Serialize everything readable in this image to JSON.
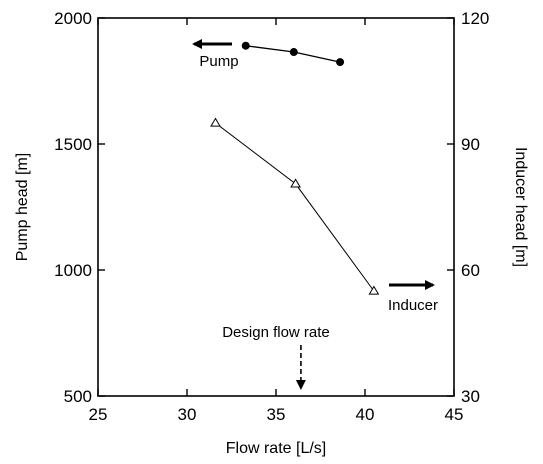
{
  "chart_data": {
    "type": "line",
    "title": "",
    "xlabel": "Flow rate [L/s]",
    "ylabel_left": "Pump head [m]",
    "ylabel_right": "Inducer head [m]",
    "xlim": [
      25,
      45
    ],
    "ylim_left": [
      500,
      2000
    ],
    "ylim_right": [
      30,
      120
    ],
    "xticks": [
      25,
      30,
      35,
      40,
      45
    ],
    "yticks_left": [
      500,
      1000,
      1500,
      2000
    ],
    "yticks_right": [
      30,
      60,
      90,
      120
    ],
    "grid": false,
    "series": [
      {
        "name": "Pump",
        "axis": "left",
        "marker": "filled-circle",
        "x": [
          33.3,
          36.0,
          38.6
        ],
        "y": [
          1890,
          1865,
          1825
        ]
      },
      {
        "name": "Inducer",
        "axis": "right",
        "marker": "open-triangle",
        "x": [
          31.6,
          36.1,
          40.5
        ],
        "y": [
          95,
          80.5,
          55
        ]
      }
    ],
    "annotations": [
      {
        "text": "Pump",
        "arrow": "left",
        "series": "Pump"
      },
      {
        "text": "Inducer",
        "arrow": "right",
        "series": "Inducer"
      },
      {
        "text": "Design flow rate",
        "arrow": "down",
        "x": 36.4
      }
    ]
  }
}
